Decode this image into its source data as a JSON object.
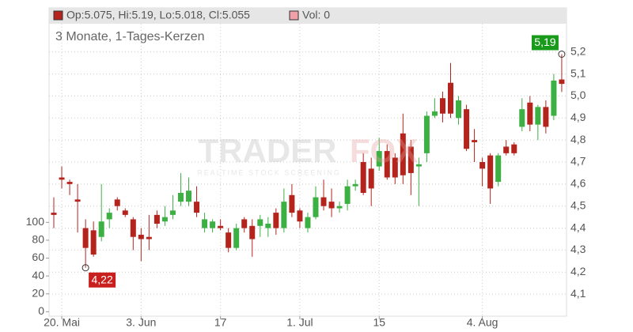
{
  "chart_data": {
    "type": "candlestick",
    "header": {
      "ohlc": "Op:5.075, Hi:5.19, Lo:5.018, Cl:5.055",
      "volume": "Vol: 0"
    },
    "subtitle": "3 Monate, 1-Tages-Kerzen",
    "watermark": {
      "brand_left": "TRADER",
      "brand_right": "FOX",
      "tagline": "REALTIME STOCK SCREENING"
    },
    "categories": [
      null,
      "20. Mai",
      null,
      null,
      null,
      null,
      null,
      null,
      null,
      null,
      null,
      "3. Jun",
      null,
      null,
      null,
      null,
      null,
      null,
      null,
      null,
      null,
      "17",
      null,
      null,
      null,
      null,
      null,
      null,
      null,
      null,
      null,
      "1. Jul",
      null,
      null,
      null,
      null,
      null,
      null,
      null,
      null,
      null,
      "15",
      null,
      null,
      null,
      null,
      null,
      null,
      null,
      null,
      null,
      null,
      null,
      null,
      "4. Aug",
      null,
      null,
      null,
      null,
      null,
      null,
      null,
      null,
      null,
      null
    ],
    "series": [
      {
        "up_color": "#3cb043",
        "down_color": "#b5241c",
        "open": [
          4.47,
          4.63,
          4.61,
          4.53,
          4.4,
          4.39,
          4.36,
          4.44,
          4.53,
          4.48,
          4.44,
          4.37,
          4.36,
          4.46,
          4.43,
          4.46,
          4.52,
          4.52,
          4.52,
          4.4,
          4.4,
          4.41,
          4.38,
          4.31,
          4.44,
          4.41,
          4.41,
          4.4,
          4.47,
          4.4,
          4.55,
          4.48,
          4.4,
          4.45,
          4.54,
          4.52,
          4.49,
          4.51,
          4.59,
          4.7,
          4.67,
          4.68,
          4.75,
          4.72,
          4.83,
          4.77,
          4.68,
          4.74,
          4.91,
          4.99,
          5.06,
          4.9,
          4.94,
          4.8,
          4.7,
          4.73,
          4.61,
          4.77,
          4.78,
          4.86,
          4.97,
          4.87,
          4.95,
          4.91,
          5.075
        ],
        "high": [
          4.54,
          4.68,
          4.62,
          4.6,
          4.44,
          4.43,
          4.6,
          4.49,
          4.54,
          4.49,
          4.45,
          4.4,
          4.46,
          4.48,
          4.5,
          4.55,
          4.65,
          4.63,
          4.59,
          4.47,
          4.44,
          4.44,
          4.4,
          4.42,
          4.45,
          4.44,
          4.46,
          4.45,
          4.49,
          4.58,
          4.6,
          4.49,
          4.47,
          4.59,
          4.62,
          4.58,
          4.52,
          4.62,
          4.62,
          4.74,
          4.72,
          4.81,
          4.78,
          4.74,
          4.92,
          4.8,
          4.72,
          4.93,
          4.99,
          5.02,
          5.15,
          5.0,
          4.96,
          4.85,
          4.72,
          4.74,
          4.74,
          4.8,
          4.79,
          4.99,
          5.0,
          4.96,
          4.98,
          5.1,
          5.19
        ],
        "low": [
          4.4,
          4.58,
          4.55,
          4.38,
          4.22,
          4.27,
          4.34,
          4.4,
          4.48,
          4.45,
          4.3,
          4.25,
          4.3,
          4.4,
          4.41,
          4.44,
          4.5,
          4.5,
          4.45,
          4.38,
          4.38,
          4.39,
          4.29,
          4.3,
          4.38,
          4.27,
          4.36,
          4.36,
          4.37,
          4.38,
          4.45,
          4.4,
          4.38,
          4.44,
          4.48,
          4.45,
          4.47,
          4.48,
          4.57,
          4.55,
          4.5,
          4.66,
          4.62,
          4.6,
          4.6,
          4.55,
          4.5,
          4.7,
          4.9,
          4.88,
          4.9,
          4.87,
          4.75,
          4.7,
          4.59,
          4.51,
          4.59,
          4.73,
          4.73,
          4.84,
          4.84,
          4.8,
          4.83,
          4.89,
          5.018
        ],
        "close": [
          4.46,
          4.62,
          4.6,
          4.52,
          4.31,
          4.28,
          4.43,
          4.47,
          4.5,
          4.46,
          4.36,
          4.35,
          4.35,
          4.42,
          4.45,
          4.48,
          4.56,
          4.57,
          4.47,
          4.44,
          4.43,
          4.4,
          4.31,
          4.4,
          4.4,
          4.35,
          4.44,
          4.42,
          4.4,
          4.52,
          4.47,
          4.43,
          4.45,
          4.54,
          4.5,
          4.49,
          4.5,
          4.59,
          4.6,
          4.56,
          4.58,
          4.75,
          4.63,
          4.63,
          4.64,
          4.65,
          4.69,
          4.91,
          4.93,
          4.92,
          4.92,
          4.98,
          4.76,
          4.79,
          4.67,
          4.58,
          4.73,
          4.74,
          4.74,
          4.94,
          4.87,
          4.95,
          4.86,
          5.07,
          5.055
        ]
      }
    ],
    "annotations": [
      {
        "label": "5,19",
        "value": 5.19,
        "index": 64,
        "color": "#1a9a1a"
      },
      {
        "label": "4,22",
        "value": 4.22,
        "index": 4,
        "color": "#c81e1e"
      }
    ],
    "ylim": [
      4.0,
      5.4
    ],
    "yticks": [
      {
        "value": 4.1,
        "label": "4,1"
      },
      {
        "value": 4.2,
        "label": "4,2"
      },
      {
        "value": 4.3,
        "label": "4,3"
      },
      {
        "value": 4.4,
        "label": "4,4"
      },
      {
        "value": 4.5,
        "label": "4,5"
      },
      {
        "value": 4.6,
        "label": "4,6"
      },
      {
        "value": 4.7,
        "label": "4,7"
      },
      {
        "value": 4.8,
        "label": "4,8"
      },
      {
        "value": 4.9,
        "label": "4,9"
      },
      {
        "value": 5.0,
        "label": "5,0"
      },
      {
        "value": 5.1,
        "label": "5,1"
      },
      {
        "value": 5.2,
        "label": "5,2"
      }
    ],
    "y2lim": [
      -5,
      340
    ],
    "y2ticks": [
      0,
      20,
      40,
      60,
      80,
      100
    ],
    "grid": true
  }
}
